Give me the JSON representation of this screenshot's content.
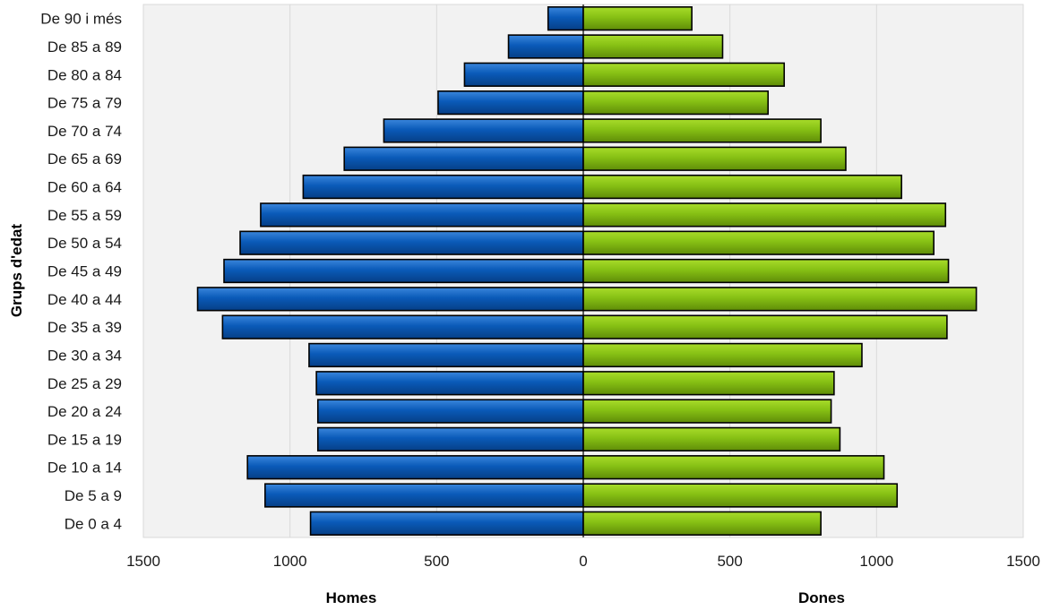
{
  "chart_data": {
    "type": "bar",
    "orientation": "horizontal",
    "subtype": "population-pyramid",
    "title": "",
    "ylabel": "Grups d'edat",
    "xlabel_left": "Homes",
    "xlabel_right": "Dones",
    "categories": [
      "De 0 a 4",
      "De 5 a 9",
      "De 10 a 14",
      "De 15 a 19",
      "De 20 a 24",
      "De 25 a 29",
      "De 30 a 34",
      "De 35 a 39",
      "De 40 a 44",
      "De 45 a 49",
      "De 50 a 54",
      "De 55 a 59",
      "De 60 a 64",
      "De 65 a 69",
      "De 70 a 74",
      "De 75 a 79",
      "De 80 a 84",
      "De 85 a 89",
      "De 90 i més"
    ],
    "series": [
      {
        "name": "Homes",
        "color": "#0a4fa6",
        "values": [
          930,
          1085,
          1145,
          905,
          905,
          910,
          935,
          1230,
          1315,
          1225,
          1170,
          1100,
          955,
          815,
          680,
          495,
          405,
          255,
          120
        ]
      },
      {
        "name": "Dones",
        "color": "#7db412",
        "values": [
          810,
          1070,
          1025,
          875,
          845,
          855,
          950,
          1240,
          1340,
          1245,
          1195,
          1235,
          1085,
          895,
          810,
          630,
          685,
          475,
          370
        ]
      }
    ],
    "xlim": [
      -1500,
      1500
    ],
    "xticks": [
      -1500,
      -1000,
      -500,
      0,
      500,
      1000,
      1500
    ],
    "xtick_labels": [
      "1500",
      "1000",
      "500",
      "0",
      "500",
      "1000",
      "1500"
    ],
    "grid": true
  }
}
